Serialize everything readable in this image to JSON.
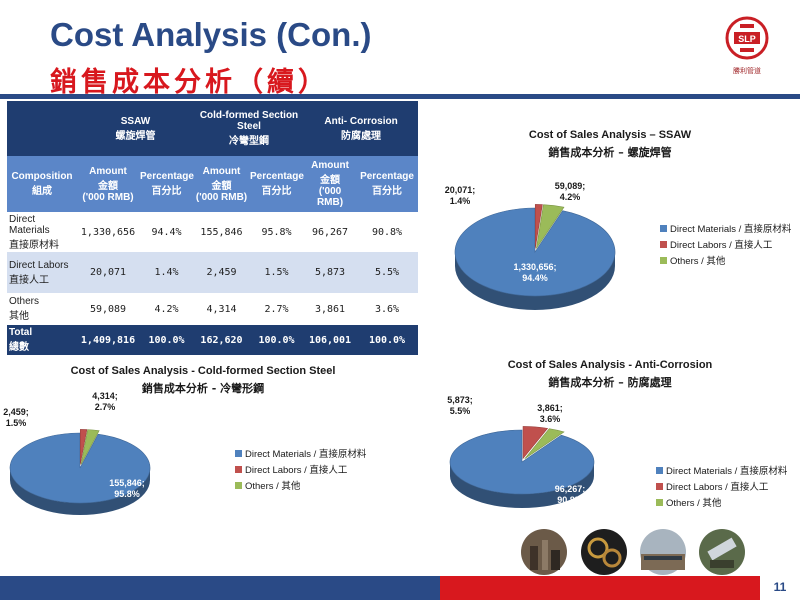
{
  "title_en": "Cost Analysis  (Con.)",
  "title_zh": "銷售成本分析（續）",
  "logo": {
    "mark": "SLP",
    "name": "勝利管道"
  },
  "table": {
    "groups": [
      {
        "en": "SSAW",
        "zh": "螺旋焊管"
      },
      {
        "en": "Cold-formed Section Steel",
        "zh": "冷彎型鋼"
      },
      {
        "en": "Anti- Corrosion",
        "zh": "防腐處理"
      }
    ],
    "composition": {
      "en": "Composition",
      "zh": "組成"
    },
    "amount": {
      "en": "Amount",
      "zh": "金額",
      "unit": "('000 RMB)"
    },
    "percentage": {
      "en": "Percentage",
      "zh": "百分比"
    },
    "rows": [
      {
        "en": "Direct Materials",
        "zh": "直接原材料",
        "values": [
          "1,330,656",
          "94.4%",
          "155,846",
          "95.8%",
          "96,267",
          "90.8%"
        ]
      },
      {
        "en": "Direct Labors",
        "zh": "直接人工",
        "values": [
          "20,071",
          "1.4%",
          "2,459",
          "1.5%",
          "5,873",
          "5.5%"
        ]
      },
      {
        "en": "Others",
        "zh": "其他",
        "values": [
          "59,089",
          "4.2%",
          "4,314",
          "2.7%",
          "3,861",
          "3.6%"
        ]
      }
    ],
    "total": {
      "en": "Total",
      "zh": "總數",
      "values": [
        "1,409,816",
        "100.0%",
        "162,620",
        "100.0%",
        "106,001",
        "100.0%"
      ]
    }
  },
  "legend": [
    {
      "en": "Direct Materials",
      "zh": "直接原材料"
    },
    {
      "en": "Direct Labors",
      "zh": "直接人工"
    },
    {
      "en": "Others",
      "zh": "其他"
    }
  ],
  "colors": {
    "materials": "#4f81bd",
    "labors": "#c0504d",
    "others": "#9bbb59",
    "navy": "#1f3d70",
    "red": "#d8181e"
  },
  "chart_data": [
    {
      "type": "pie",
      "title": "Cost of Sales Analysis – SSAW",
      "subtitle": "銷售成本分析 – 螺旋焊管",
      "categories": [
        "Direct Materials / 直接原材料",
        "Direct Labors / 直接人工",
        "Others / 其他"
      ],
      "values": [
        1330656,
        20071,
        59089
      ],
      "percentages": [
        "94.4%",
        "1.4%",
        "4.2%"
      ],
      "labels": [
        "1,330,656;",
        "20,071;",
        "59,089;"
      ],
      "legend": "right"
    },
    {
      "type": "pie",
      "title": "Cost of Sales Analysis - Cold-formed Section Steel",
      "subtitle": "銷售成本分析 - 冷彎形鋼",
      "categories": [
        "Direct Materials / 直接原材料",
        "Direct Labors / 直接人工",
        "Others / 其他"
      ],
      "values": [
        155846,
        2459,
        4314
      ],
      "percentages": [
        "95.8%",
        "1.5%",
        "2.7%"
      ],
      "labels": [
        "155,846;",
        "2,459;",
        "4,314;"
      ],
      "legend": "right"
    },
    {
      "type": "pie",
      "title": "Cost of Sales Analysis - Anti-Corrosion",
      "subtitle": "銷售成本分析 – 防腐處理",
      "categories": [
        "Direct Materials / 直接原材料",
        "Direct Labors / 直接人工",
        "Others / 其他"
      ],
      "values": [
        96267,
        5873,
        3861
      ],
      "percentages": [
        "90.8%",
        "5.5%",
        "3.6%"
      ],
      "labels": [
        "96,267;",
        "5,873;",
        "3,861;"
      ],
      "legend": "right"
    }
  ],
  "page_number": "11"
}
